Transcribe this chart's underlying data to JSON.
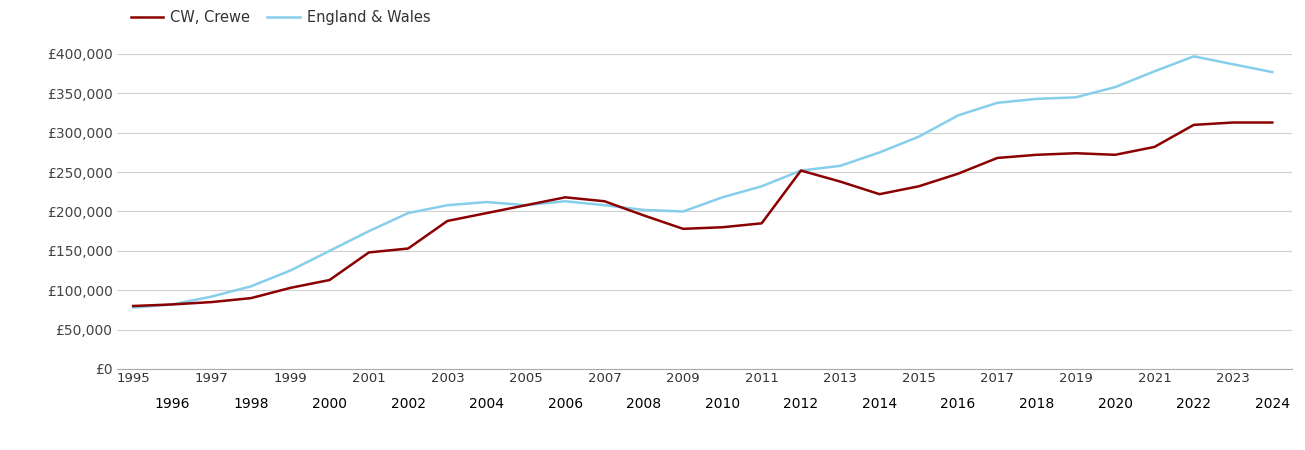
{
  "crewe_years": [
    1995,
    1996,
    1997,
    1998,
    1999,
    2000,
    2001,
    2002,
    2003,
    2004,
    2005,
    2006,
    2007,
    2008,
    2009,
    2010,
    2011,
    2012,
    2013,
    2014,
    2015,
    2016,
    2017,
    2018,
    2019,
    2020,
    2021,
    2022,
    2023,
    2024
  ],
  "crewe_values": [
    80000,
    82000,
    85000,
    90000,
    103000,
    113000,
    148000,
    153000,
    188000,
    198000,
    208000,
    218000,
    213000,
    195000,
    178000,
    180000,
    185000,
    252000,
    238000,
    222000,
    232000,
    248000,
    268000,
    272000,
    274000,
    272000,
    282000,
    310000,
    313000,
    313000
  ],
  "england_years": [
    1995,
    1996,
    1997,
    1998,
    1999,
    2000,
    2001,
    2002,
    2003,
    2004,
    2005,
    2006,
    2007,
    2008,
    2009,
    2010,
    2011,
    2012,
    2013,
    2014,
    2015,
    2016,
    2017,
    2018,
    2019,
    2020,
    2021,
    2022,
    2023,
    2024
  ],
  "england_values": [
    78000,
    82000,
    92000,
    105000,
    125000,
    150000,
    175000,
    198000,
    208000,
    212000,
    208000,
    213000,
    208000,
    202000,
    200000,
    218000,
    232000,
    252000,
    258000,
    275000,
    295000,
    322000,
    338000,
    343000,
    345000,
    358000,
    378000,
    397000,
    387000,
    377000
  ],
  "crewe_color": "#8B0000",
  "england_color": "#87CEEB",
  "crewe_label": "CW, Crewe",
  "england_label": "England & Wales",
  "ylim": [
    0,
    400000
  ],
  "yticks": [
    0,
    50000,
    100000,
    150000,
    200000,
    250000,
    300000,
    350000,
    400000
  ],
  "bg_color": "#ffffff",
  "grid_color": "#d0d0d0",
  "line_width": 1.8,
  "legend_fontsize": 10.5,
  "tick_fontsize": 9.5
}
